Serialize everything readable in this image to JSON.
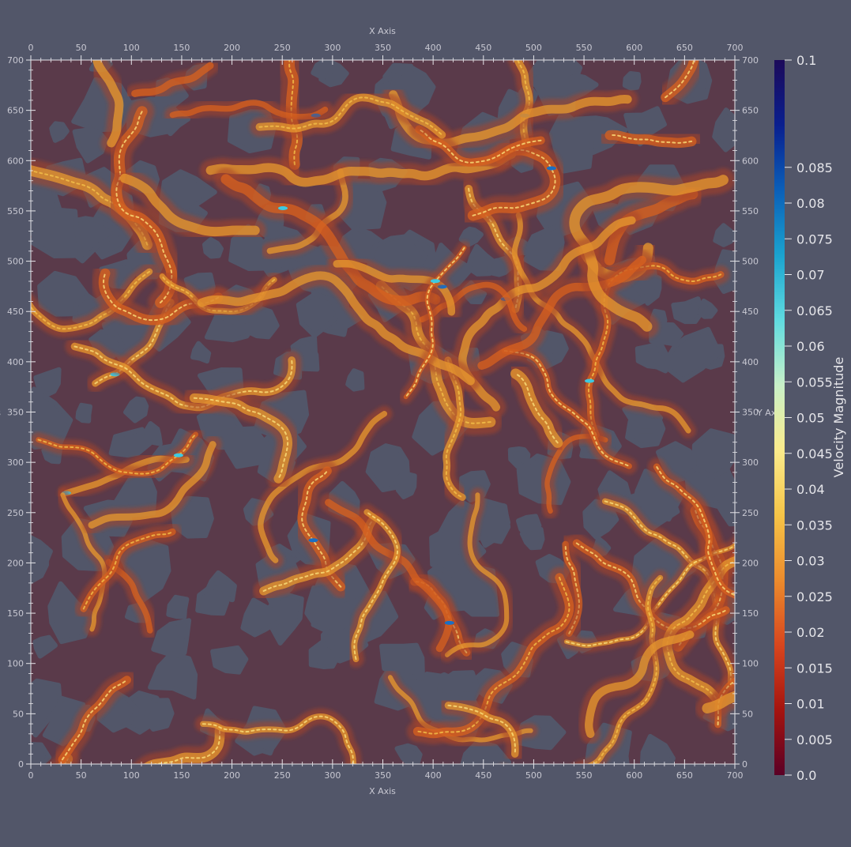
{
  "chart_data": {
    "type": "heatmap",
    "title": "",
    "xlabel": "X Axis",
    "ylabel": "Y Axis",
    "xlim": [
      0,
      700
    ],
    "ylim": [
      0,
      700
    ],
    "xticks": [
      "0",
      "50",
      "100",
      "150",
      "200",
      "250",
      "300",
      "350",
      "400",
      "450",
      "500",
      "550",
      "600",
      "650",
      "700"
    ],
    "yticks": [
      "0",
      "50",
      "100",
      "150",
      "200",
      "250",
      "300",
      "350",
      "400",
      "450",
      "500",
      "550",
      "600",
      "650",
      "700"
    ],
    "colorbar": {
      "label": "Velocity Magnitude",
      "range": [
        0.0,
        0.1
      ],
      "ticks": [
        "0.0",
        "0.005",
        "0.01",
        "0.015",
        "0.02",
        "0.025",
        "0.03",
        "0.035",
        "0.04",
        "0.045",
        "0.05",
        "0.055",
        "0.06",
        "0.065",
        "0.07",
        "0.075",
        "0.08",
        "0.085",
        "0.1"
      ],
      "colormap": [
        "#5b0026",
        "#a5140f",
        "#d8461e",
        "#ec8b2c",
        "#f6c447",
        "#fbeb8c",
        "#c8f0c8",
        "#5fdbe0",
        "#1aa3cf",
        "#0b5fb8",
        "#0a1f8f",
        "#1c0a5a"
      ]
    },
    "colors": {
      "background": "#525669",
      "solid": "#5a3a4a",
      "pore": "#525669",
      "axis": "#e6e6ea",
      "tick_text": "#c8c8d2"
    }
  }
}
